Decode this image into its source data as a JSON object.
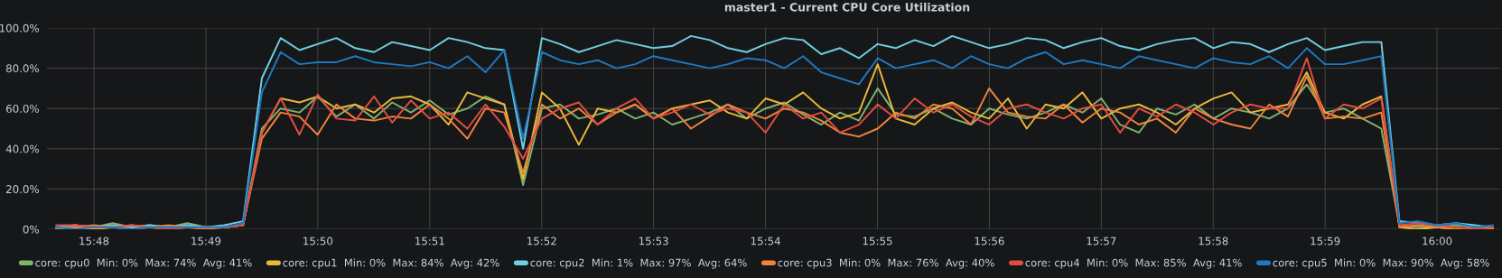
{
  "chart_data": {
    "type": "line",
    "title": "master1 - Current CPU Core Utilization",
    "x": [
      15.7944,
      15.7972,
      15.8,
      15.8028,
      15.8056,
      15.8083,
      15.8111,
      15.8139,
      15.8167,
      15.8194,
      15.8222,
      15.825,
      15.8278,
      15.8306,
      15.8333,
      15.8361,
      15.8389,
      15.8417,
      15.8444,
      15.8472,
      15.85,
      15.8528,
      15.8556,
      15.8583,
      15.8611,
      15.8639,
      15.8667,
      15.8694,
      15.8722,
      15.875,
      15.8778,
      15.8806,
      15.8833,
      15.8861,
      15.8889,
      15.8917,
      15.8944,
      15.8972,
      15.9,
      15.9028,
      15.9056,
      15.9083,
      15.9111,
      15.9139,
      15.9167,
      15.9194,
      15.9222,
      15.925,
      15.9278,
      15.9306,
      15.9333,
      15.9361,
      15.9389,
      15.9417,
      15.9444,
      15.9472,
      15.95,
      15.9528,
      15.9556,
      15.9583,
      15.9611,
      15.9639,
      15.9667,
      15.9694,
      15.9722,
      15.975,
      15.9778,
      15.9806,
      15.9833,
      15.9861,
      15.9889,
      15.9917,
      15.9944,
      15.9972,
      16.0,
      16.0028,
      16.0056,
      16.0083
    ],
    "series": [
      {
        "name": "core: cpu0  Min: 0%  Max: 74%  Avg: 41%",
        "color": "#7eb26d",
        "values": [
          1,
          2,
          1,
          3,
          1,
          2,
          1,
          3,
          1,
          1,
          2,
          50,
          60,
          58,
          66,
          56,
          62,
          55,
          63,
          58,
          64,
          57,
          60,
          66,
          62,
          22,
          60,
          62,
          55,
          57,
          60,
          55,
          58,
          52,
          55,
          58,
          62,
          55,
          60,
          63,
          57,
          52,
          58,
          54,
          70,
          57,
          56,
          60,
          55,
          52,
          60,
          57,
          55,
          58,
          62,
          58,
          65,
          52,
          48,
          60,
          57,
          62,
          55,
          60,
          58,
          55,
          60,
          72,
          58,
          60,
          55,
          50,
          2,
          1,
          1,
          2,
          1,
          1
        ]
      },
      {
        "name": "core: cpu1  Min: 0%  Max: 84%  Avg: 42%",
        "color": "#eab839",
        "values": [
          0,
          1,
          0,
          1,
          2,
          1,
          0,
          1,
          1,
          1,
          2,
          48,
          65,
          63,
          66,
          60,
          62,
          58,
          65,
          66,
          62,
          52,
          68,
          65,
          62,
          25,
          68,
          60,
          42,
          60,
          58,
          62,
          55,
          60,
          62,
          64,
          58,
          55,
          65,
          62,
          68,
          60,
          55,
          58,
          82,
          55,
          52,
          60,
          63,
          58,
          55,
          65,
          50,
          62,
          60,
          68,
          55,
          60,
          62,
          58,
          52,
          60,
          65,
          68,
          58,
          60,
          62,
          78,
          58,
          55,
          62,
          66,
          1,
          0,
          1,
          0,
          1,
          0
        ]
      },
      {
        "name": "core: cpu2  Min: 1%  Max: 97%  Avg: 64%",
        "color": "#6ed0e0",
        "values": [
          1,
          2,
          1,
          2,
          1,
          2,
          1,
          2,
          1,
          2,
          4,
          75,
          95,
          89,
          92,
          95,
          90,
          88,
          93,
          91,
          89,
          95,
          93,
          90,
          89,
          40,
          95,
          92,
          88,
          91,
          94,
          92,
          90,
          91,
          96,
          94,
          90,
          88,
          92,
          95,
          94,
          87,
          90,
          85,
          92,
          90,
          94,
          91,
          96,
          93,
          90,
          92,
          95,
          94,
          90,
          93,
          95,
          91,
          89,
          92,
          94,
          95,
          90,
          93,
          92,
          88,
          92,
          95,
          89,
          91,
          93,
          93,
          4,
          3,
          2,
          3,
          2,
          1
        ]
      },
      {
        "name": "core: cpu3  Min: 0%  Max: 76%  Avg: 40%",
        "color": "#ef843c",
        "values": [
          0,
          1,
          2,
          1,
          0,
          1,
          2,
          1,
          0,
          1,
          2,
          45,
          58,
          56,
          47,
          62,
          55,
          54,
          56,
          55,
          62,
          55,
          45,
          60,
          58,
          28,
          62,
          55,
          60,
          52,
          58,
          62,
          55,
          60,
          50,
          56,
          62,
          58,
          55,
          60,
          58,
          54,
          48,
          46,
          50,
          58,
          55,
          62,
          60,
          52,
          70,
          58,
          56,
          55,
          62,
          53,
          60,
          58,
          52,
          55,
          48,
          60,
          55,
          52,
          50,
          62,
          56,
          76,
          55,
          56,
          55,
          58,
          1,
          2,
          1,
          0,
          1,
          0
        ]
      },
      {
        "name": "core: cpu4  Min: 0%  Max: 85%  Avg: 41%",
        "color": "#e24d42",
        "values": [
          2,
          2,
          1,
          1,
          2,
          1,
          0,
          1,
          1,
          1,
          2,
          48,
          65,
          47,
          67,
          55,
          54,
          66,
          53,
          64,
          55,
          58,
          50,
          62,
          51,
          35,
          55,
          60,
          63,
          52,
          60,
          65,
          55,
          58,
          62,
          57,
          60,
          58,
          48,
          62,
          55,
          58,
          48,
          52,
          62,
          55,
          65,
          58,
          62,
          56,
          52,
          60,
          62,
          58,
          55,
          60,
          62,
          48,
          60,
          56,
          62,
          58,
          52,
          58,
          62,
          60,
          60,
          85,
          55,
          62,
          60,
          65,
          2,
          3,
          2,
          1,
          0,
          1
        ]
      },
      {
        "name": "core: cpu5  Min: 0%  Max: 90%  Avg: 58%",
        "color": "#1f78c1",
        "values": [
          1,
          0,
          1,
          1,
          0,
          1,
          1,
          1,
          1,
          1,
          3,
          68,
          88,
          82,
          83,
          83,
          86,
          83,
          82,
          81,
          83,
          80,
          86,
          78,
          89,
          45,
          88,
          84,
          82,
          84,
          80,
          82,
          86,
          84,
          82,
          80,
          82,
          85,
          84,
          80,
          86,
          78,
          75,
          72,
          85,
          80,
          82,
          84,
          80,
          86,
          82,
          80,
          85,
          88,
          82,
          84,
          82,
          80,
          86,
          84,
          82,
          80,
          85,
          83,
          82,
          86,
          80,
          90,
          82,
          82,
          84,
          86,
          3,
          4,
          2,
          3,
          1,
          2
        ]
      }
    ],
    "xlim": [
      15.793,
      16.0094
    ],
    "xticks": [
      {
        "value": 15.8,
        "label": "15:48"
      },
      {
        "value": 15.81667,
        "label": "15:49"
      },
      {
        "value": 15.83333,
        "label": "15:50"
      },
      {
        "value": 15.85,
        "label": "15:51"
      },
      {
        "value": 15.86667,
        "label": "15:52"
      },
      {
        "value": 15.88333,
        "label": "15:53"
      },
      {
        "value": 15.9,
        "label": "15:54"
      },
      {
        "value": 15.91667,
        "label": "15:55"
      },
      {
        "value": 15.93333,
        "label": "15:56"
      },
      {
        "value": 15.95,
        "label": "15:57"
      },
      {
        "value": 15.96667,
        "label": "15:58"
      },
      {
        "value": 15.98333,
        "label": "15:59"
      },
      {
        "value": 16.0,
        "label": "16:00"
      }
    ],
    "ylim": [
      0,
      100
    ],
    "yticks": [
      {
        "value": 0,
        "label": "0%"
      },
      {
        "value": 20,
        "label": "20.0%"
      },
      {
        "value": 40,
        "label": "40.0%"
      },
      {
        "value": 60,
        "label": "60.0%"
      },
      {
        "value": 80,
        "label": "80.0%"
      },
      {
        "value": 100,
        "label": "100.0%"
      }
    ],
    "grid": true,
    "legend": "bottom",
    "marker": "none",
    "line_style": "solid"
  }
}
